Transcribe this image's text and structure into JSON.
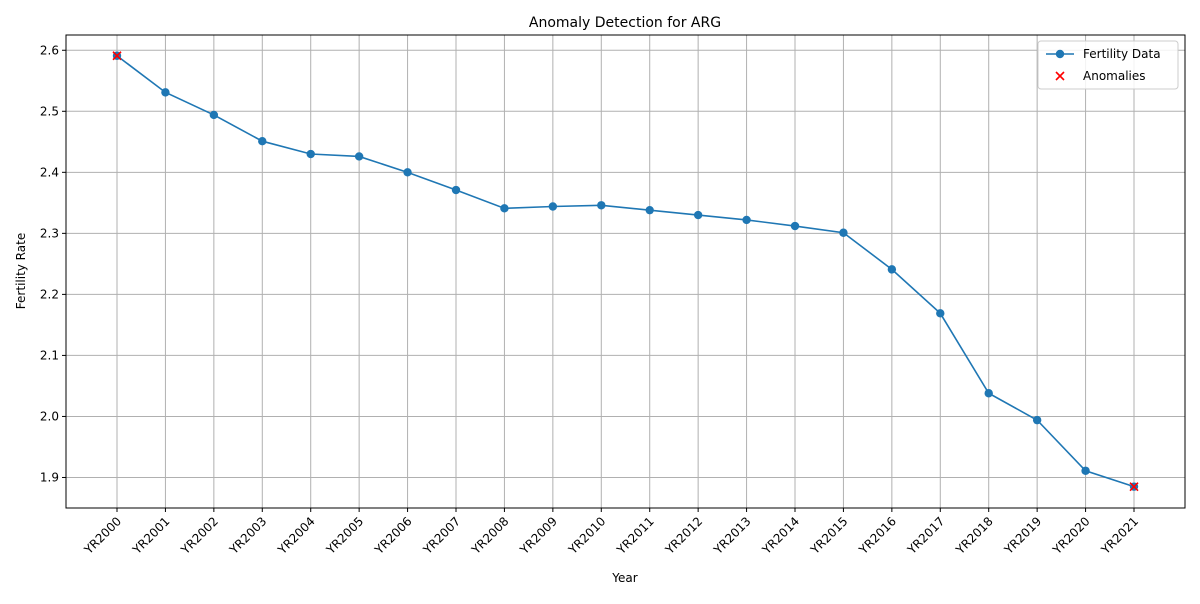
{
  "chart_data": {
    "type": "line",
    "title": "Anomaly Detection for ARG",
    "xlabel": "Year",
    "ylabel": "Fertility Rate",
    "categories": [
      "YR2000",
      "YR2001",
      "YR2002",
      "YR2003",
      "YR2004",
      "YR2005",
      "YR2006",
      "YR2007",
      "YR2008",
      "YR2009",
      "YR2010",
      "YR2011",
      "YR2012",
      "YR2013",
      "YR2014",
      "YR2015",
      "YR2016",
      "YR2017",
      "YR2018",
      "YR2019",
      "YR2020",
      "YR2021"
    ],
    "ylim": [
      1.85,
      2.625
    ],
    "yticks": [
      1.9,
      2.0,
      2.1,
      2.2,
      2.3,
      2.4,
      2.5,
      2.6
    ],
    "ytick_labels": [
      "1.9",
      "2.0",
      "2.1",
      "2.2",
      "2.3",
      "2.4",
      "2.5",
      "2.6"
    ],
    "grid": true,
    "legend_position": "top-right",
    "series": [
      {
        "name": "Fertility Data",
        "color": "#1f77b4",
        "marker": "circle",
        "values": [
          2.591,
          2.531,
          2.494,
          2.451,
          2.43,
          2.426,
          2.4,
          2.371,
          2.341,
          2.344,
          2.346,
          2.338,
          2.33,
          2.322,
          2.312,
          2.301,
          2.241,
          2.169,
          2.038,
          1.994,
          1.911,
          1.885
        ]
      }
    ],
    "anomalies": {
      "name": "Anomalies",
      "color": "#ff0000",
      "marker": "x",
      "categories": [
        "YR2000",
        "YR2021"
      ],
      "values": [
        2.591,
        1.885
      ]
    }
  }
}
